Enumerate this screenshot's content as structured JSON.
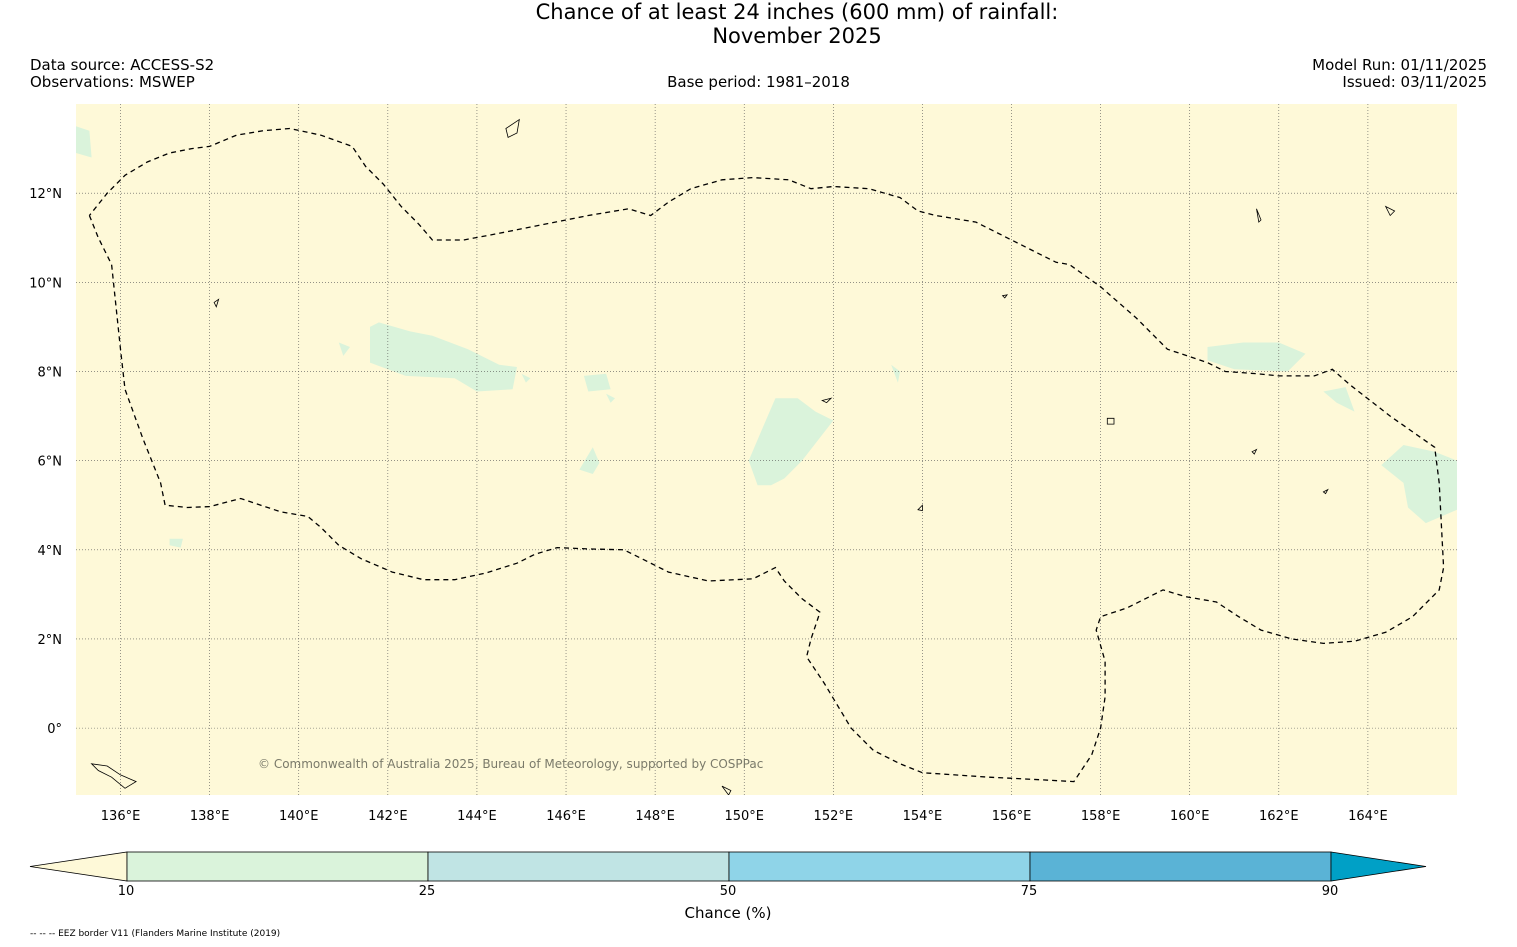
{
  "title": {
    "line1": "Chance of at least 24 inches (600  mm) of rainfall:",
    "line2": "November 2025"
  },
  "header": {
    "data_source": "Data source: ACCESS-S2",
    "observations": "Observations: MSWEP",
    "base_period": "Base period: 1981–2018",
    "model_run": "Model Run: 01/11/2025",
    "issued": "Issued: 03/11/2025"
  },
  "map": {
    "lon_range": [
      135,
      166
    ],
    "lat_range": [
      -1.5,
      14
    ],
    "background_color": "#fef9d8",
    "low_chance_color": "#daf3db",
    "lat_ticks": [
      {
        "value": 12,
        "label": "12°N"
      },
      {
        "value": 10,
        "label": "10°N"
      },
      {
        "value": 8,
        "label": "8°N"
      },
      {
        "value": 6,
        "label": "6°N"
      },
      {
        "value": 4,
        "label": "4°N"
      },
      {
        "value": 2,
        "label": "2°N"
      },
      {
        "value": 0,
        "label": "0°"
      }
    ],
    "lon_ticks": [
      {
        "value": 136,
        "label": "136°E"
      },
      {
        "value": 138,
        "label": "138°E"
      },
      {
        "value": 140,
        "label": "140°E"
      },
      {
        "value": 142,
        "label": "142°E"
      },
      {
        "value": 144,
        "label": "144°E"
      },
      {
        "value": 146,
        "label": "146°E"
      },
      {
        "value": 148,
        "label": "148°E"
      },
      {
        "value": 150,
        "label": "150°E"
      },
      {
        "value": 152,
        "label": "152°E"
      },
      {
        "value": 154,
        "label": "154°E"
      },
      {
        "value": 156,
        "label": "156°E"
      },
      {
        "value": 158,
        "label": "158°E"
      },
      {
        "value": 160,
        "label": "160°E"
      },
      {
        "value": 162,
        "label": "162°E"
      },
      {
        "value": 164,
        "label": "164°E"
      }
    ],
    "copyright": "© Commonwealth of Australia 2025, Bureau of Meteorology, supported by COSPPac",
    "eez_border": [
      [
        135.3,
        11.5
      ],
      [
        135.5,
        11.0
      ],
      [
        135.8,
        10.4
      ],
      [
        136.0,
        8.5
      ],
      [
        136.1,
        7.6
      ],
      [
        136.5,
        6.5
      ],
      [
        136.9,
        5.5
      ],
      [
        137.0,
        5.0
      ],
      [
        137.5,
        4.95
      ],
      [
        138.0,
        4.97
      ],
      [
        138.7,
        5.15
      ],
      [
        139.0,
        5.05
      ],
      [
        139.6,
        4.85
      ],
      [
        140.2,
        4.75
      ],
      [
        140.5,
        4.5
      ],
      [
        140.9,
        4.1
      ],
      [
        141.4,
        3.8
      ],
      [
        142.1,
        3.5
      ],
      [
        142.8,
        3.33
      ],
      [
        143.5,
        3.33
      ],
      [
        144.2,
        3.48
      ],
      [
        144.9,
        3.7
      ],
      [
        145.3,
        3.9
      ],
      [
        145.8,
        4.05
      ],
      [
        146.5,
        4.02
      ],
      [
        147.3,
        4.0
      ],
      [
        147.7,
        3.8
      ],
      [
        148.3,
        3.5
      ],
      [
        149.2,
        3.3
      ],
      [
        150.2,
        3.35
      ],
      [
        150.7,
        3.6
      ],
      [
        150.9,
        3.3
      ],
      [
        151.3,
        2.9
      ],
      [
        151.7,
        2.6
      ],
      [
        151.5,
        2.0
      ],
      [
        151.4,
        1.6
      ],
      [
        151.8,
        1.0
      ],
      [
        152.4,
        0.0
      ],
      [
        152.9,
        -0.5
      ],
      [
        153.5,
        -0.8
      ],
      [
        154.0,
        -1.0
      ],
      [
        155.5,
        -1.1
      ],
      [
        156.5,
        -1.15
      ],
      [
        157.4,
        -1.2
      ],
      [
        157.8,
        -0.6
      ],
      [
        158.0,
        0.0
      ],
      [
        158.1,
        0.7
      ],
      [
        158.1,
        1.5
      ],
      [
        157.9,
        2.2
      ],
      [
        158.0,
        2.5
      ],
      [
        158.6,
        2.7
      ],
      [
        159.0,
        2.9
      ],
      [
        159.4,
        3.1
      ],
      [
        159.9,
        2.95
      ],
      [
        160.6,
        2.83
      ],
      [
        161.1,
        2.5
      ],
      [
        161.6,
        2.2
      ],
      [
        162.3,
        2.0
      ],
      [
        163.0,
        1.9
      ],
      [
        163.7,
        1.95
      ],
      [
        164.4,
        2.15
      ],
      [
        165.0,
        2.5
      ],
      [
        165.6,
        3.1
      ],
      [
        165.7,
        3.6
      ],
      [
        165.6,
        5.5
      ],
      [
        165.5,
        6.3
      ],
      [
        164.5,
        7.0
      ],
      [
        163.6,
        7.7
      ],
      [
        163.2,
        8.05
      ],
      [
        162.8,
        7.9
      ],
      [
        162.0,
        7.9
      ],
      [
        161.5,
        7.95
      ],
      [
        160.8,
        8.0
      ],
      [
        160.4,
        8.2
      ],
      [
        159.5,
        8.5
      ],
      [
        158.8,
        9.2
      ],
      [
        158.0,
        9.9
      ],
      [
        157.3,
        10.4
      ],
      [
        157.0,
        10.45
      ],
      [
        156.3,
        10.8
      ],
      [
        155.8,
        11.05
      ],
      [
        155.2,
        11.35
      ],
      [
        154.3,
        11.5
      ],
      [
        153.9,
        11.6
      ],
      [
        153.5,
        11.9
      ],
      [
        152.8,
        12.1
      ],
      [
        152.0,
        12.15
      ],
      [
        151.5,
        12.1
      ],
      [
        151.0,
        12.3
      ],
      [
        150.2,
        12.35
      ],
      [
        149.5,
        12.3
      ],
      [
        148.8,
        12.1
      ],
      [
        148.3,
        11.8
      ],
      [
        147.9,
        11.5
      ],
      [
        147.4,
        11.65
      ],
      [
        146.5,
        11.5
      ],
      [
        145.5,
        11.3
      ],
      [
        144.5,
        11.1
      ],
      [
        143.7,
        10.95
      ],
      [
        143.0,
        10.95
      ],
      [
        142.7,
        11.3
      ],
      [
        142.3,
        11.7
      ],
      [
        141.9,
        12.2
      ],
      [
        141.5,
        12.6
      ],
      [
        141.2,
        13.05
      ],
      [
        140.5,
        13.3
      ],
      [
        139.8,
        13.45
      ],
      [
        139.2,
        13.4
      ],
      [
        138.6,
        13.3
      ],
      [
        138.0,
        13.05
      ],
      [
        137.6,
        13.0
      ],
      [
        137.1,
        12.9
      ],
      [
        136.6,
        12.7
      ],
      [
        136.1,
        12.4
      ],
      [
        135.7,
        12.0
      ],
      [
        135.3,
        11.5
      ]
    ],
    "islands": [
      [
        [
          144.65,
          13.45
        ],
        [
          144.95,
          13.65
        ],
        [
          144.9,
          13.35
        ],
        [
          144.7,
          13.25
        ],
        [
          144.65,
          13.45
        ]
      ],
      [
        [
          138.1,
          9.55
        ],
        [
          138.2,
          9.62
        ],
        [
          138.15,
          9.45
        ],
        [
          138.1,
          9.55
        ]
      ],
      [
        [
          151.75,
          7.35
        ],
        [
          151.95,
          7.4
        ],
        [
          151.85,
          7.3
        ],
        [
          151.75,
          7.35
        ]
      ],
      [
        [
          158.15,
          6.95
        ],
        [
          158.3,
          6.95
        ],
        [
          158.3,
          6.82
        ],
        [
          158.15,
          6.82
        ],
        [
          158.15,
          6.95
        ]
      ],
      [
        [
          163.0,
          5.3
        ],
        [
          163.1,
          5.35
        ],
        [
          163.05,
          5.26
        ],
        [
          163.0,
          5.3
        ]
      ],
      [
        [
          153.9,
          4.9
        ],
        [
          154.0,
          5.0
        ],
        [
          154.0,
          4.88
        ],
        [
          153.9,
          4.9
        ]
      ],
      [
        [
          135.35,
          -0.8
        ],
        [
          135.7,
          -0.85
        ],
        [
          136.0,
          -1.05
        ],
        [
          136.35,
          -1.2
        ],
        [
          136.1,
          -1.35
        ],
        [
          135.8,
          -1.1
        ],
        [
          135.5,
          -0.95
        ],
        [
          135.35,
          -0.8
        ]
      ],
      [
        [
          149.5,
          -1.3
        ],
        [
          149.7,
          -1.4
        ],
        [
          149.65,
          -1.5
        ],
        [
          149.5,
          -1.3
        ]
      ],
      [
        [
          155.8,
          9.7
        ],
        [
          155.9,
          9.72
        ],
        [
          155.85,
          9.65
        ],
        [
          155.8,
          9.7
        ]
      ],
      [
        [
          161.4,
          6.2
        ],
        [
          161.5,
          6.25
        ],
        [
          161.45,
          6.15
        ],
        [
          161.4,
          6.2
        ]
      ],
      [
        [
          164.4,
          11.7
        ],
        [
          164.6,
          11.6
        ],
        [
          164.5,
          11.5
        ],
        [
          164.4,
          11.7
        ]
      ],
      [
        [
          161.5,
          11.65
        ],
        [
          161.6,
          11.4
        ],
        [
          161.55,
          11.35
        ],
        [
          161.5,
          11.65
        ]
      ]
    ],
    "low_chance_areas": [
      [
        [
          141.6,
          9.0
        ],
        [
          141.8,
          9.1
        ],
        [
          142.5,
          8.9
        ],
        [
          143.0,
          8.8
        ],
        [
          143.8,
          8.5
        ],
        [
          144.5,
          8.15
        ],
        [
          144.9,
          8.1
        ],
        [
          144.8,
          7.6
        ],
        [
          144.0,
          7.55
        ],
        [
          143.5,
          7.85
        ],
        [
          142.4,
          7.9
        ],
        [
          141.6,
          8.2
        ],
        [
          141.6,
          9.0
        ]
      ],
      [
        [
          150.7,
          7.4
        ],
        [
          151.2,
          7.4
        ],
        [
          151.6,
          7.1
        ],
        [
          152.0,
          6.9
        ],
        [
          151.3,
          6.0
        ],
        [
          150.9,
          5.6
        ],
        [
          150.6,
          5.45
        ],
        [
          150.3,
          5.45
        ],
        [
          150.1,
          6.0
        ],
        [
          150.4,
          6.7
        ],
        [
          150.7,
          7.4
        ]
      ],
      [
        [
          160.4,
          8.55
        ],
        [
          161.2,
          8.65
        ],
        [
          162.0,
          8.65
        ],
        [
          162.6,
          8.4
        ],
        [
          162.2,
          8.0
        ],
        [
          161.0,
          8.05
        ],
        [
          160.4,
          8.25
        ],
        [
          160.4,
          8.55
        ]
      ],
      [
        [
          164.3,
          5.9
        ],
        [
          164.8,
          6.35
        ],
        [
          165.5,
          6.2
        ],
        [
          166.0,
          6.0
        ],
        [
          166.0,
          4.9
        ],
        [
          165.3,
          4.6
        ],
        [
          164.9,
          4.95
        ],
        [
          164.8,
          5.5
        ],
        [
          164.3,
          5.9
        ]
      ],
      [
        [
          135.0,
          13.5
        ],
        [
          135.3,
          13.4
        ],
        [
          135.35,
          12.8
        ],
        [
          135.0,
          12.9
        ],
        [
          135.0,
          13.5
        ]
      ],
      [
        [
          146.4,
          7.9
        ],
        [
          146.9,
          7.95
        ],
        [
          147.0,
          7.6
        ],
        [
          146.5,
          7.55
        ],
        [
          146.4,
          7.9
        ]
      ],
      [
        [
          146.6,
          6.3
        ],
        [
          146.75,
          5.95
        ],
        [
          146.6,
          5.7
        ],
        [
          146.3,
          5.8
        ],
        [
          146.6,
          6.3
        ]
      ],
      [
        [
          163.0,
          7.55
        ],
        [
          163.5,
          7.65
        ],
        [
          163.7,
          7.1
        ],
        [
          163.3,
          7.3
        ],
        [
          163.0,
          7.55
        ]
      ],
      [
        [
          137.1,
          4.25
        ],
        [
          137.4,
          4.25
        ],
        [
          137.35,
          4.05
        ],
        [
          137.1,
          4.1
        ],
        [
          137.1,
          4.25
        ]
      ],
      [
        [
          140.9,
          8.65
        ],
        [
          141.15,
          8.55
        ],
        [
          141.0,
          8.35
        ],
        [
          140.9,
          8.65
        ]
      ],
      [
        [
          153.3,
          8.15
        ],
        [
          153.5,
          8.0
        ],
        [
          153.45,
          7.75
        ],
        [
          153.3,
          8.15
        ]
      ],
      [
        [
          145.0,
          7.95
        ],
        [
          145.2,
          7.85
        ],
        [
          145.1,
          7.75
        ],
        [
          145.0,
          7.95
        ]
      ],
      [
        [
          146.9,
          7.5
        ],
        [
          147.1,
          7.4
        ],
        [
          147.0,
          7.3
        ],
        [
          146.9,
          7.5
        ]
      ]
    ]
  },
  "colorbar": {
    "label": "Chance (%)",
    "tick_labels": [
      "10",
      "25",
      "50",
      "75",
      "90"
    ],
    "colors": [
      "#fef9d8",
      "#daf3db",
      "#c0e4e4",
      "#8fd4e8",
      "#5ab3d6",
      "#00a0c6"
    ]
  },
  "footnote": "-- -- -- EEZ border V11 (Flanders Marine Institute (2019)"
}
